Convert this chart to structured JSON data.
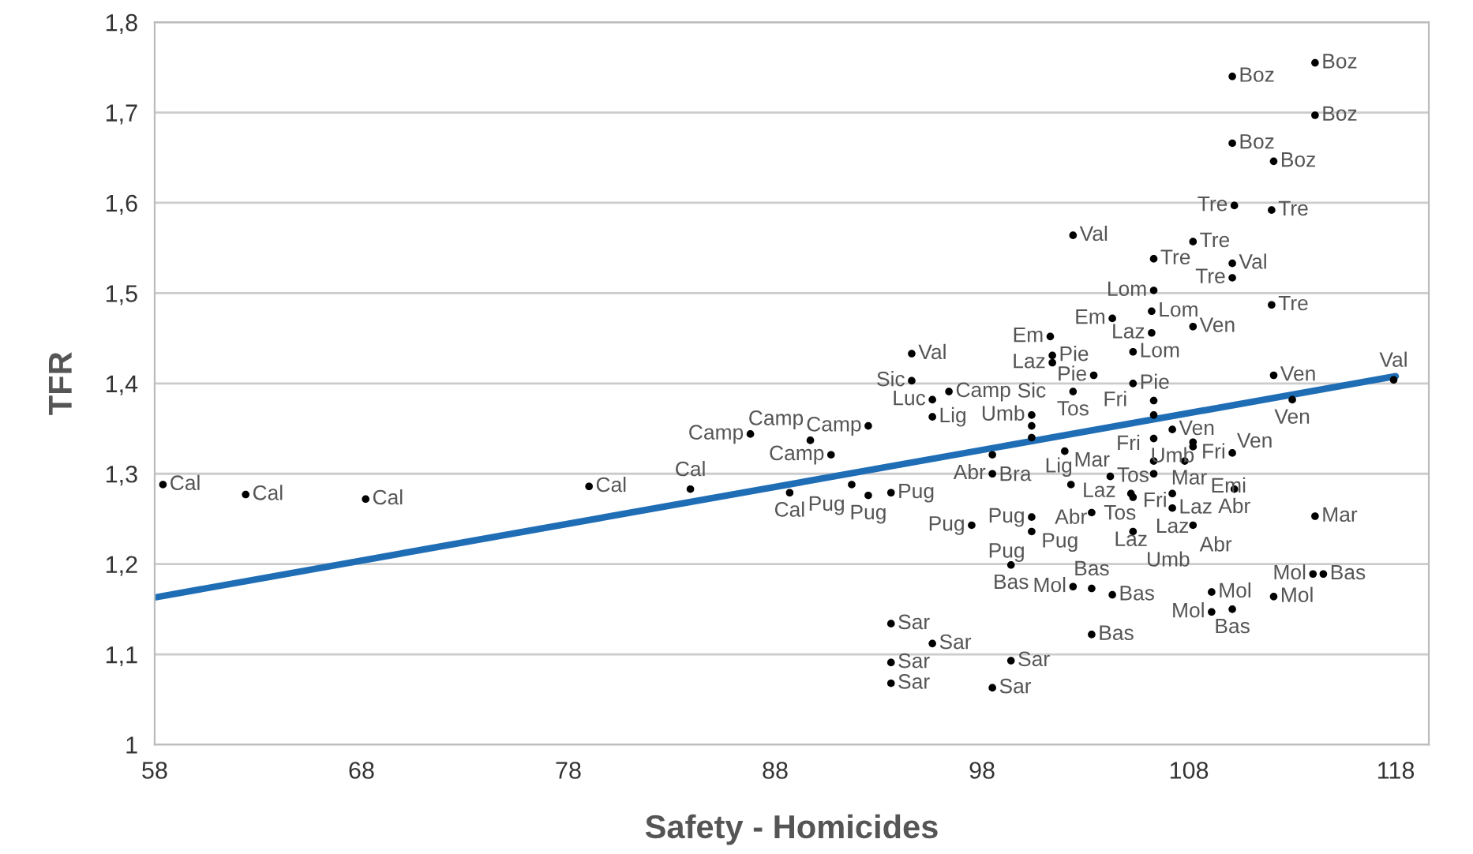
{
  "chart_data": {
    "type": "scatter",
    "xlabel": "Safety - Homicides",
    "ylabel": "TFR",
    "xlim": [
      58,
      119.6
    ],
    "xticks": [
      58,
      68,
      78,
      88,
      98,
      108,
      118
    ],
    "ylim": [
      1,
      1.8
    ],
    "yticks": [
      1,
      {
        "value": 1.1,
        "label": "1,1"
      },
      {
        "value": 1.2,
        "label": "1,2"
      },
      {
        "value": 1.3,
        "label": "1,3"
      },
      {
        "value": 1.4,
        "label": "1,4"
      },
      {
        "value": 1.5,
        "label": "1,5"
      },
      {
        "value": 1.6,
        "label": "1,6"
      },
      {
        "value": 1.7,
        "label": "1,7"
      },
      {
        "value": 1.8,
        "label": "1,8"
      }
    ],
    "grid": "y",
    "legend": false,
    "marker": "circle",
    "series": [
      {
        "color": "#000000",
        "x": [
          114.1,
          110.1,
          114.1,
          110.1,
          112.1,
          110.2,
          112.0,
          102.4,
          108.2,
          106.3,
          110.1,
          110.1,
          106.3,
          112.0,
          106.2,
          104.3,
          108.2,
          106.2,
          101.3,
          94.6,
          101.4,
          105.3,
          101.4,
          94.6,
          103.4,
          112.1,
          117.9,
          96.4,
          102.4,
          105.3,
          95.6,
          113.0,
          106.3,
          95.6,
          100.4,
          106.3,
          92.5,
          100.4,
          86.8,
          100.4,
          89.7,
          106.3,
          107.2,
          108.2,
          108.2,
          90.7,
          98.5,
          102.0,
          106.3,
          110.1,
          107.8,
          98.5,
          106.3,
          104.2,
          91.7,
          102.3,
          110.2,
          58.4,
          62.4,
          68.2,
          79.0,
          83.9,
          88.7,
          92.5,
          93.6,
          107.2,
          105.2,
          105.3,
          107.2,
          103.3,
          100.4,
          114.1,
          97.5,
          108.2,
          100.4,
          105.3,
          99.4,
          114.0,
          114.5,
          102.4,
          103.3,
          104.3,
          109.1,
          112.1,
          109.1,
          110.1,
          103.3,
          93.6,
          95.6,
          93.6,
          99.4,
          93.6,
          98.5
        ],
        "values": [
          1.755,
          1.74,
          1.697,
          1.666,
          1.646,
          1.597,
          1.592,
          1.564,
          1.557,
          1.538,
          1.533,
          1.517,
          1.503,
          1.487,
          1.48,
          1.472,
          1.463,
          1.456,
          1.452,
          1.433,
          1.431,
          1.435,
          1.423,
          1.403,
          1.409,
          1.409,
          1.404,
          1.391,
          1.391,
          1.4,
          1.382,
          1.382,
          1.381,
          1.363,
          1.365,
          1.365,
          1.353,
          1.353,
          1.344,
          1.34,
          1.337,
          1.339,
          1.349,
          1.335,
          1.33,
          1.321,
          1.321,
          1.325,
          1.314,
          1.323,
          1.314,
          1.3,
          1.3,
          1.297,
          1.288,
          1.288,
          1.283,
          1.288,
          1.277,
          1.272,
          1.286,
          1.283,
          1.279,
          1.276,
          1.279,
          1.278,
          1.278,
          1.274,
          1.262,
          1.257,
          1.252,
          1.253,
          1.243,
          1.243,
          1.236,
          1.236,
          1.199,
          1.189,
          1.189,
          1.175,
          1.173,
          1.166,
          1.169,
          1.164,
          1.147,
          1.15,
          1.122,
          1.134,
          1.112,
          1.091,
          1.093,
          1.068,
          1.063
        ]
      },
      {
        "type": "line",
        "color": "#1f6db5",
        "x": [
          58,
          118
        ],
        "values": [
          1.163,
          1.408
        ],
        "marker": "none"
      }
    ],
    "annotations": [
      {
        "text": "Boz",
        "x": 114.1,
        "y": 1.755
      },
      {
        "text": "Boz",
        "x": 110.1,
        "y": 1.74
      },
      {
        "text": "Boz",
        "x": 114.1,
        "y": 1.697
      },
      {
        "text": "Boz",
        "x": 110.1,
        "y": 1.666
      },
      {
        "text": "Boz",
        "x": 112.1,
        "y": 1.646
      },
      {
        "text": "Tre",
        "x": 110.2,
        "y": 1.597
      },
      {
        "text": "Tre",
        "x": 112.0,
        "y": 1.592
      },
      {
        "text": "Val",
        "x": 102.4,
        "y": 1.564
      },
      {
        "text": "Tre",
        "x": 108.2,
        "y": 1.557
      },
      {
        "text": "Tre",
        "x": 106.3,
        "y": 1.538
      },
      {
        "text": "Val",
        "x": 110.1,
        "y": 1.533
      },
      {
        "text": "Tre",
        "x": 110.1,
        "y": 1.517
      },
      {
        "text": "Lom",
        "x": 106.3,
        "y": 1.503
      },
      {
        "text": "Tre",
        "x": 112.0,
        "y": 1.487
      },
      {
        "text": "Lom",
        "x": 106.2,
        "y": 1.48
      },
      {
        "text": "Em",
        "x": 104.3,
        "y": 1.472
      },
      {
        "text": "Ven",
        "x": 108.2,
        "y": 1.463
      },
      {
        "text": "Laz",
        "x": 106.2,
        "y": 1.456
      },
      {
        "text": "Em",
        "x": 101.3,
        "y": 1.452
      },
      {
        "text": "Val",
        "x": 94.6,
        "y": 1.433
      },
      {
        "text": "Pie",
        "x": 101.4,
        "y": 1.431
      },
      {
        "text": "Lom",
        "x": 105.3,
        "y": 1.435
      },
      {
        "text": "Laz",
        "x": 101.4,
        "y": 1.423
      },
      {
        "text": "Sic",
        "x": 94.6,
        "y": 1.403
      },
      {
        "text": "Pie",
        "x": 103.4,
        "y": 1.409
      },
      {
        "text": "Ven",
        "x": 112.1,
        "y": 1.409
      },
      {
        "text": "Val",
        "x": 117.9,
        "y": 1.404
      },
      {
        "text": "Camp",
        "x": 96.4,
        "y": 1.391
      },
      {
        "text": "Tos",
        "x": 102.4,
        "y": 1.391
      },
      {
        "text": "Pie",
        "x": 105.3,
        "y": 1.4
      },
      {
        "text": "Luc",
        "x": 95.6,
        "y": 1.382
      },
      {
        "text": "Ven",
        "x": 113.0,
        "y": 1.382
      },
      {
        "text": "Fri",
        "x": 106.3,
        "y": 1.381
      },
      {
        "text": "Lig",
        "x": 95.6,
        "y": 1.363
      },
      {
        "text": "Umb",
        "x": 100.4,
        "y": 1.365
      },
      {
        "text": "Fri",
        "x": 106.3,
        "y": 1.365
      },
      {
        "text": "Camp",
        "x": 92.5,
        "y": 1.353
      },
      {
        "text": "Sic",
        "x": 100.4,
        "y": 1.353
      },
      {
        "text": "Camp",
        "x": 86.8,
        "y": 1.344
      },
      {
        "text": "Lig",
        "x": 100.4,
        "y": 1.34
      },
      {
        "text": "Camp",
        "x": 89.7,
        "y": 1.337
      },
      {
        "text": "Mar",
        "x": 106.3,
        "y": 1.339
      },
      {
        "text": "Ven",
        "x": 107.2,
        "y": 1.349
      },
      {
        "text": "Ven",
        "x": 108.2,
        "y": 1.335
      },
      {
        "text": "Emi",
        "x": 108.2,
        "y": 1.33
      },
      {
        "text": "Camp",
        "x": 90.7,
        "y": 1.321
      },
      {
        "text": "Bra",
        "x": 98.5,
        "y": 1.321
      },
      {
        "text": "Laz",
        "x": 102.0,
        "y": 1.325
      },
      {
        "text": "Mar",
        "x": 106.3,
        "y": 1.314
      },
      {
        "text": "Fri",
        "x": 110.1,
        "y": 1.323
      },
      {
        "text": "Fri",
        "x": 107.8,
        "y": 1.314
      },
      {
        "text": "Abr",
        "x": 98.5,
        "y": 1.3
      },
      {
        "text": "Tos",
        "x": 106.3,
        "y": 1.3
      },
      {
        "text": "Tos",
        "x": 104.2,
        "y": 1.297
      },
      {
        "text": "Pug",
        "x": 91.7,
        "y": 1.288
      },
      {
        "text": "Abr",
        "x": 102.3,
        "y": 1.288
      },
      {
        "text": "Abr",
        "x": 110.2,
        "y": 1.283
      },
      {
        "text": "Cal",
        "x": 58.4,
        "y": 1.288
      },
      {
        "text": "Cal",
        "x": 62.4,
        "y": 1.277
      },
      {
        "text": "Cal",
        "x": 68.2,
        "y": 1.272
      },
      {
        "text": "Cal",
        "x": 79.0,
        "y": 1.286
      },
      {
        "text": "Cal",
        "x": 83.9,
        "y": 1.283
      },
      {
        "text": "Cal",
        "x": 88.7,
        "y": 1.279
      },
      {
        "text": "Pug",
        "x": 92.5,
        "y": 1.276
      },
      {
        "text": "Pug",
        "x": 93.6,
        "y": 1.279
      },
      {
        "text": "Laz",
        "x": 107.2,
        "y": 1.278
      },
      {
        "text": "Laz",
        "x": 105.2,
        "y": 1.278
      },
      {
        "text": "Umb",
        "x": 105.3,
        "y": 1.274
      },
      {
        "text": "Laz",
        "x": 107.2,
        "y": 1.262
      },
      {
        "text": "Pug",
        "x": 103.3,
        "y": 1.257
      },
      {
        "text": "Pug",
        "x": 100.4,
        "y": 1.252
      },
      {
        "text": "Mar",
        "x": 114.1,
        "y": 1.253
      },
      {
        "text": "Pug",
        "x": 97.5,
        "y": 1.243
      },
      {
        "text": "Abr",
        "x": 108.2,
        "y": 1.243
      },
      {
        "text": "Pug",
        "x": 100.4,
        "y": 1.236
      },
      {
        "text": "Umb",
        "x": 105.3,
        "y": 1.236
      },
      {
        "text": "Bas",
        "x": 99.4,
        "y": 1.199
      },
      {
        "text": "Mol",
        "x": 114.0,
        "y": 1.189
      },
      {
        "text": "Bas",
        "x": 114.5,
        "y": 1.189
      },
      {
        "text": "Mol",
        "x": 102.4,
        "y": 1.175
      },
      {
        "text": "Bas",
        "x": 103.3,
        "y": 1.173
      },
      {
        "text": "Bas",
        "x": 104.3,
        "y": 1.166
      },
      {
        "text": "Mol",
        "x": 109.1,
        "y": 1.169
      },
      {
        "text": "Mol",
        "x": 112.1,
        "y": 1.164
      },
      {
        "text": "Mol",
        "x": 109.1,
        "y": 1.147
      },
      {
        "text": "Bas",
        "x": 110.1,
        "y": 1.15
      },
      {
        "text": "Bas",
        "x": 103.3,
        "y": 1.122
      },
      {
        "text": "Sar",
        "x": 93.6,
        "y": 1.134
      },
      {
        "text": "Sar",
        "x": 95.6,
        "y": 1.112
      },
      {
        "text": "Sar",
        "x": 93.6,
        "y": 1.091
      },
      {
        "text": "Sar",
        "x": 99.4,
        "y": 1.093
      },
      {
        "text": "Sar",
        "x": 93.6,
        "y": 1.068
      },
      {
        "text": "Sar",
        "x": 98.5,
        "y": 1.063
      }
    ]
  }
}
